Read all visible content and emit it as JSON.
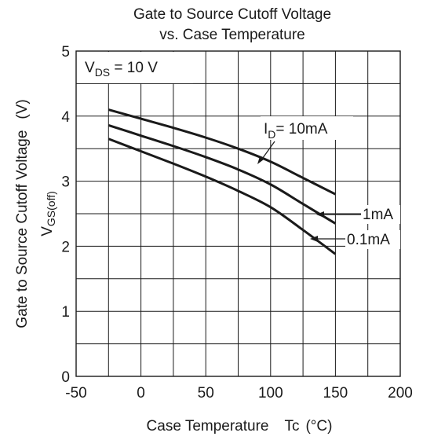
{
  "chart_data": {
    "type": "line",
    "title_line1": "Gate to Source Cutoff Voltage",
    "title_line2": "vs. Case Temperature",
    "xlabel": "Case Temperature",
    "xlabel_symbol": "Tc",
    "xlabel_unit": "(°C)",
    "ylabel_text": "Gate to Source Cutoff Voltage",
    "ylabel_unit": "(V)",
    "ylabel_symbol_main": "V",
    "ylabel_symbol_sub": "GS(off)",
    "condition_main": "V",
    "condition_sub": "DS",
    "condition_value": " = 10 V",
    "xlim": [
      -50,
      200
    ],
    "ylim": [
      0,
      5
    ],
    "xticks": [
      -50,
      0,
      50,
      100,
      150,
      200
    ],
    "xtick_labels": [
      "-50",
      "0",
      "50",
      "100",
      "150",
      "200"
    ],
    "yticks": [
      0,
      1,
      2,
      3,
      4,
      5
    ],
    "ytick_labels": [
      "0",
      "1",
      "2",
      "3",
      "4",
      "5"
    ],
    "x_grid_step": 25,
    "y_grid_step": 0.5,
    "grid": true,
    "series": [
      {
        "name": "10mA",
        "x": [
          -25,
          0,
          25,
          50,
          75,
          100,
          125,
          150
        ],
        "y": [
          4.1,
          3.96,
          3.82,
          3.67,
          3.5,
          3.3,
          3.05,
          2.8
        ]
      },
      {
        "name": "1mA",
        "x": [
          -25,
          0,
          25,
          50,
          75,
          100,
          125,
          150
        ],
        "y": [
          3.86,
          3.7,
          3.54,
          3.37,
          3.18,
          2.95,
          2.65,
          2.35
        ]
      },
      {
        "name": "0.1mA",
        "x": [
          -25,
          0,
          25,
          50,
          75,
          100,
          125,
          150
        ],
        "y": [
          3.65,
          3.46,
          3.27,
          3.07,
          2.85,
          2.6,
          2.25,
          1.88
        ]
      }
    ],
    "annotation_id_main": "I",
    "annotation_id_sub": "D",
    "annotation_id_value": "= 10mA",
    "annotation_1mA": "1mA",
    "annotation_01mA": "0.1mA"
  },
  "colors": {
    "line": "#1a1a1a",
    "grid": "#1a1a1a",
    "background": "#ffffff"
  }
}
